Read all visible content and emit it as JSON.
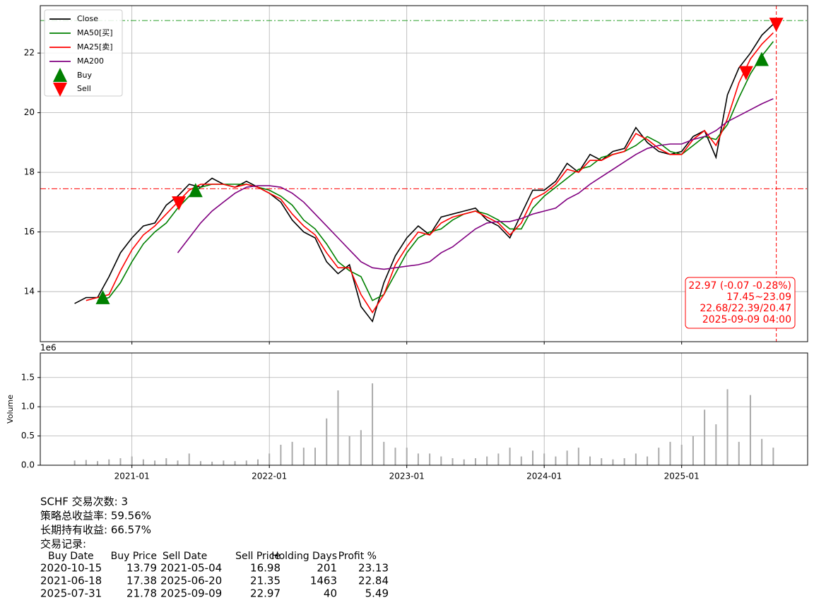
{
  "chart_data": [
    {
      "type": "line",
      "legend": "upper left",
      "grid": true,
      "x": [
        "2020-08",
        "2020-09",
        "2020-10",
        "2020-11",
        "2020-12",
        "2021-01",
        "2021-02",
        "2021-03",
        "2021-04",
        "2021-05",
        "2021-06",
        "2021-07",
        "2021-08",
        "2021-09",
        "2021-10",
        "2021-11",
        "2021-12",
        "2022-01",
        "2022-02",
        "2022-03",
        "2022-04",
        "2022-05",
        "2022-06",
        "2022-07",
        "2022-08",
        "2022-09",
        "2022-10",
        "2022-11",
        "2022-12",
        "2023-01",
        "2023-02",
        "2023-03",
        "2023-04",
        "2023-05",
        "2023-06",
        "2023-07",
        "2023-08",
        "2023-09",
        "2023-10",
        "2023-11",
        "2023-12",
        "2024-01",
        "2024-02",
        "2024-03",
        "2024-04",
        "2024-05",
        "2024-06",
        "2024-07",
        "2024-08",
        "2024-09",
        "2024-10",
        "2024-11",
        "2024-12",
        "2025-01",
        "2025-02",
        "2025-03",
        "2025-04",
        "2025-05",
        "2025-06",
        "2025-07",
        "2025-08",
        "2025-09"
      ],
      "series": [
        {
          "name": "Close",
          "color": "#000000",
          "values": [
            13.6,
            13.8,
            13.8,
            14.5,
            15.3,
            15.8,
            16.2,
            16.3,
            16.9,
            17.2,
            17.6,
            17.5,
            17.8,
            17.6,
            17.5,
            17.7,
            17.5,
            17.3,
            17.0,
            16.4,
            16.0,
            15.8,
            15.0,
            14.6,
            14.9,
            13.5,
            13.0,
            14.3,
            15.2,
            15.8,
            16.2,
            15.9,
            16.5,
            16.6,
            16.7,
            16.8,
            16.4,
            16.2,
            15.8,
            16.6,
            17.4,
            17.4,
            17.7,
            18.3,
            18.0,
            18.6,
            18.4,
            18.7,
            18.8,
            19.5,
            19.0,
            18.7,
            18.6,
            18.7,
            19.2,
            19.4,
            18.5,
            20.6,
            21.5,
            22.0,
            22.6,
            22.97
          ]
        },
        {
          "name": "MA50[买]",
          "color": "#008000",
          "values": [
            null,
            null,
            13.7,
            13.8,
            14.3,
            15.0,
            15.6,
            16.0,
            16.3,
            16.8,
            17.2,
            17.5,
            17.6,
            17.6,
            17.6,
            17.6,
            17.5,
            17.4,
            17.2,
            16.9,
            16.4,
            16.1,
            15.6,
            15.0,
            14.7,
            14.5,
            13.7,
            13.9,
            14.6,
            15.3,
            15.8,
            16.0,
            16.1,
            16.4,
            16.6,
            16.7,
            16.6,
            16.4,
            16.1,
            16.1,
            16.8,
            17.2,
            17.5,
            17.8,
            18.1,
            18.2,
            18.5,
            18.6,
            18.7,
            18.9,
            19.2,
            19.0,
            18.7,
            18.6,
            18.9,
            19.2,
            19.1,
            19.6,
            20.5,
            21.3,
            21.9,
            22.39
          ]
        },
        {
          "name": "MA25[卖]",
          "color": "#ff0000",
          "values": [
            null,
            13.7,
            13.8,
            13.9,
            14.7,
            15.4,
            15.9,
            16.2,
            16.6,
            17.0,
            17.4,
            17.6,
            17.6,
            17.6,
            17.5,
            17.6,
            17.5,
            17.3,
            17.1,
            16.6,
            16.2,
            15.9,
            15.3,
            14.8,
            14.8,
            13.9,
            13.3,
            13.9,
            14.9,
            15.5,
            16.0,
            15.9,
            16.3,
            16.5,
            16.6,
            16.7,
            16.5,
            16.3,
            15.9,
            16.3,
            17.1,
            17.3,
            17.6,
            18.1,
            18.0,
            18.4,
            18.4,
            18.6,
            18.7,
            19.3,
            19.1,
            18.8,
            18.6,
            18.6,
            19.1,
            19.4,
            18.9,
            19.8,
            21.0,
            21.8,
            22.3,
            22.68
          ]
        },
        {
          "name": "MA200",
          "color": "#800080",
          "values": [
            null,
            null,
            null,
            null,
            null,
            null,
            null,
            null,
            null,
            15.3,
            15.8,
            16.3,
            16.7,
            17.0,
            17.3,
            17.5,
            17.55,
            17.55,
            17.5,
            17.3,
            17.0,
            16.6,
            16.2,
            15.8,
            15.4,
            15.0,
            14.8,
            14.75,
            14.8,
            14.85,
            14.9,
            15.0,
            15.3,
            15.5,
            15.8,
            16.1,
            16.3,
            16.35,
            16.35,
            16.45,
            16.6,
            16.7,
            16.8,
            17.1,
            17.3,
            17.6,
            17.85,
            18.1,
            18.35,
            18.6,
            18.8,
            18.9,
            18.95,
            18.95,
            19.1,
            19.2,
            19.4,
            19.7,
            19.9,
            20.1,
            20.3,
            20.47
          ]
        }
      ],
      "markers": [
        {
          "name": "Buy",
          "color": "#008000"
        },
        {
          "name": "Sell",
          "color": "#ff0000"
        }
      ],
      "hlines": [
        {
          "value": 23.09,
          "color": "#2ca02c"
        },
        {
          "value": 17.45,
          "color": "#ff0000"
        }
      ],
      "vline": {
        "value": "2025-09-09",
        "color": "#ff0000"
      },
      "annotation": [
        "22.97 (-0.07 -0.28%)",
        "17.45~23.09",
        "22.68/22.39/20.47",
        "2025-09-09 04:00"
      ],
      "xlim": [
        "2020-05",
        "2025-12"
      ],
      "xticks": [
        "2021-01",
        "2022-01",
        "2023-01",
        "2024-01",
        "2025-01"
      ],
      "ylim": [
        12.32,
        23.59
      ],
      "yticks": [
        14,
        16,
        18,
        20,
        22
      ]
    },
    {
      "type": "bar",
      "ylabel": "Volume",
      "offset_label": "1e6",
      "color": "#aaaaaa",
      "grid": true,
      "x": [
        "2020-08",
        "2020-09",
        "2020-10",
        "2020-11",
        "2020-12",
        "2021-01",
        "2021-02",
        "2021-03",
        "2021-04",
        "2021-05",
        "2021-06",
        "2021-07",
        "2021-08",
        "2021-09",
        "2021-10",
        "2021-11",
        "2021-12",
        "2022-01",
        "2022-02",
        "2022-03",
        "2022-04",
        "2022-05",
        "2022-06",
        "2022-07",
        "2022-08",
        "2022-09",
        "2022-10",
        "2022-11",
        "2022-12",
        "2023-01",
        "2023-02",
        "2023-03",
        "2023-04",
        "2023-05",
        "2023-06",
        "2023-07",
        "2023-08",
        "2023-09",
        "2023-10",
        "2023-11",
        "2023-12",
        "2024-01",
        "2024-02",
        "2024-03",
        "2024-04",
        "2024-05",
        "2024-06",
        "2024-07",
        "2024-08",
        "2024-09",
        "2024-10",
        "2024-11",
        "2024-12",
        "2025-01",
        "2025-02",
        "2025-03",
        "2025-04",
        "2025-05",
        "2025-06",
        "2025-07",
        "2025-08",
        "2025-09"
      ],
      "values": [
        0.08,
        0.09,
        0.07,
        0.1,
        0.12,
        0.15,
        0.1,
        0.08,
        0.12,
        0.08,
        0.2,
        0.07,
        0.06,
        0.08,
        0.07,
        0.08,
        0.1,
        0.2,
        0.35,
        0.4,
        0.3,
        0.3,
        0.8,
        1.28,
        0.5,
        0.6,
        1.4,
        0.4,
        0.3,
        0.3,
        0.2,
        0.2,
        0.15,
        0.12,
        0.1,
        0.12,
        0.15,
        0.2,
        0.3,
        0.15,
        0.25,
        0.2,
        0.15,
        0.25,
        0.3,
        0.15,
        0.12,
        0.1,
        0.12,
        0.2,
        0.15,
        0.3,
        0.4,
        0.35,
        0.5,
        0.95,
        0.7,
        1.3,
        0.4,
        1.2,
        0.45,
        0.3
      ],
      "xlim": [
        "2020-05",
        "2025-12"
      ],
      "xticks": [
        "2021-01",
        "2022-01",
        "2023-01",
        "2024-01",
        "2025-01"
      ],
      "ylim": [
        0,
        1.92
      ],
      "yticks": [
        {
          "value": 0,
          "label": "0.0"
        },
        0.5,
        {
          "value": 1,
          "label": "1.0"
        },
        1.5
      ]
    }
  ],
  "report": {
    "lines": [
      "SCHF 交易次数: 3",
      "策略总收益率: 59.56%",
      "长期持有收益: 66.57%",
      "交易记录:"
    ],
    "columns": [
      "Buy Date",
      "Buy Price",
      "Sell Date",
      "Sell Price",
      "Holding Days",
      "Profit %"
    ],
    "trades": [
      [
        "2020-10-15",
        13.79,
        "2021-05-04",
        16.98,
        201,
        23.13
      ],
      [
        "2021-06-18",
        17.38,
        "2025-06-20",
        21.35,
        1463,
        22.84
      ],
      [
        "2025-07-31",
        21.78,
        "2025-09-09",
        22.97,
        40,
        5.49
      ]
    ]
  }
}
